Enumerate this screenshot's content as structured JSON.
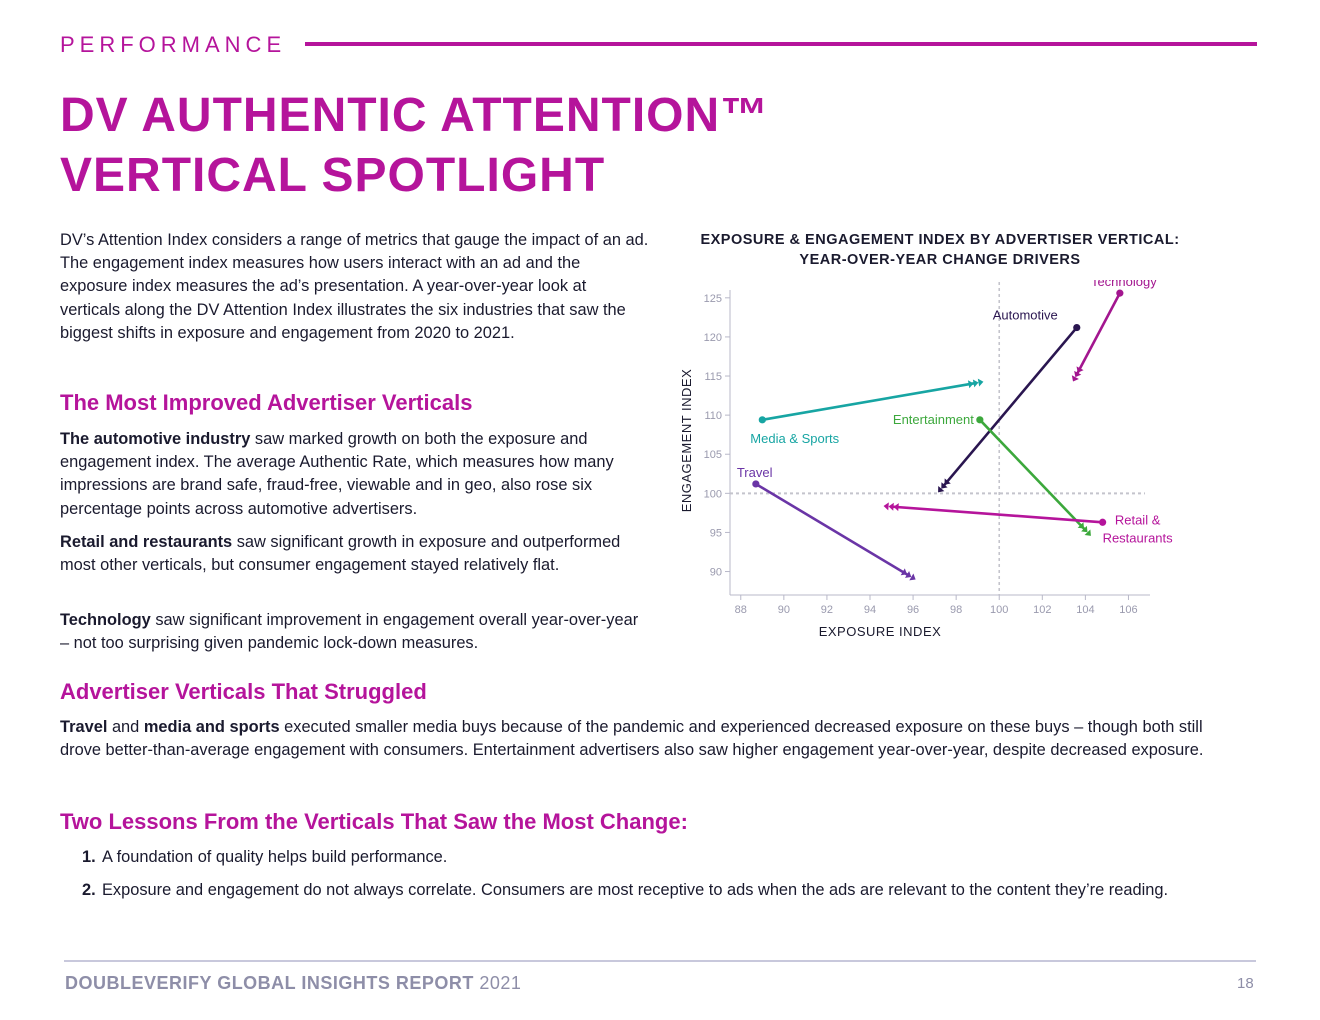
{
  "header": {
    "section": "PERFORMANCE",
    "title_line1": "DV AUTHENTIC ATTENTION™",
    "title_line2": "VERTICAL SPOTLIGHT"
  },
  "intro": "DV’s Attention Index considers a range of metrics that gauge the impact of an ad. The engagement index measures how users interact with an ad and the exposure index measures the ad’s presentation. A year-over-year look at verticals along the DV Attention Index illustrates the six industries that saw the biggest shifts in exposure and engagement from 2020 to 2021.",
  "improved": {
    "heading": "The Most Improved Advertiser Verticals",
    "p1_bold": "The automotive industry",
    "p1_text": " saw marked growth on both the exposure and engagement index. The average Authentic Rate, which measures how many impressions are brand safe, fraud-free, viewable and in geo, also rose six percentage points across automotive advertisers.",
    "p2_bold": "Retail and restaurants",
    "p2_text": " saw significant growth in exposure and outperformed most other verticals, but consumer engagement stayed relatively flat.",
    "p3_bold": "Technology",
    "p3_text": " saw significant improvement in engagement overall year-over-year – not too surprising given pandemic lock-down measures."
  },
  "struggled": {
    "heading": "Advertiser Verticals That Struggled",
    "bold1": "Travel",
    "text1": " and ",
    "bold2": "media and sports",
    "text2": " executed smaller media buys because of the pandemic and experienced decreased exposure on these buys – though both still drove better-than-average engagement with consumers. Entertainment advertisers also saw higher engagement year-over-year, despite decreased exposure."
  },
  "lessons": {
    "heading": "Two Lessons From the Verticals That Saw the Most Change:",
    "items": [
      {
        "num": "1.",
        "text": "A foundation of quality helps build performance."
      },
      {
        "num": "2.",
        "text": "Exposure and engagement do not always correlate. Consumers are most receptive to ads when the ads are relevant to the content they’re reading."
      }
    ]
  },
  "chart_data": {
    "type": "line",
    "title_line1": "EXPOSURE & ENGAGEMENT INDEX BY ADVERTISER VERTICAL:",
    "title_line2": "YEAR-OVER-YEAR CHANGE DRIVERS",
    "xlabel": "EXPOSURE INDEX",
    "ylabel": "ENGAGEMENT INDEX",
    "xlim": [
      87.5,
      107
    ],
    "ylim": [
      87,
      126
    ],
    "xticks": [
      88,
      90,
      92,
      94,
      96,
      98,
      100,
      102,
      104,
      106
    ],
    "yticks": [
      90,
      95,
      100,
      105,
      110,
      115,
      120,
      125
    ],
    "reference_lines": {
      "x": 100,
      "y": 100
    },
    "series": [
      {
        "name": "Technology",
        "label": "Technology",
        "color": "#a3168f",
        "from": [
          103.6,
          115.2
        ],
        "to": [
          105.6,
          125.6
        ]
      },
      {
        "name": "Automotive",
        "label": "Automotive",
        "color": "#2a1650",
        "from": [
          97.4,
          100.9
        ],
        "to": [
          103.6,
          121.2
        ]
      },
      {
        "name": "Media & Sports",
        "label": "Media & Sports",
        "color": "#17a5a3",
        "from": [
          98.9,
          114.1
        ],
        "to": [
          89.0,
          109.4
        ]
      },
      {
        "name": "Entertainment",
        "label": "Entertainment",
        "color": "#3ca83c",
        "from": [
          104.0,
          95.3
        ],
        "to": [
          99.1,
          109.4
        ]
      },
      {
        "name": "Travel",
        "label": "Travel",
        "color": "#6a35a6",
        "from": [
          95.8,
          89.5
        ],
        "to": [
          88.7,
          101.2
        ]
      },
      {
        "name": "Retail & Restaurants",
        "label_line1": "Retail &",
        "label_line2": "Restaurants",
        "color": "#b5149b",
        "from": [
          95.0,
          98.3
        ],
        "to": [
          104.8,
          96.3
        ]
      }
    ]
  },
  "footer": {
    "report_bold": "DOUBLEVERIFY GLOBAL INSIGHTS REPORT",
    "year": "2021",
    "page": "18"
  }
}
